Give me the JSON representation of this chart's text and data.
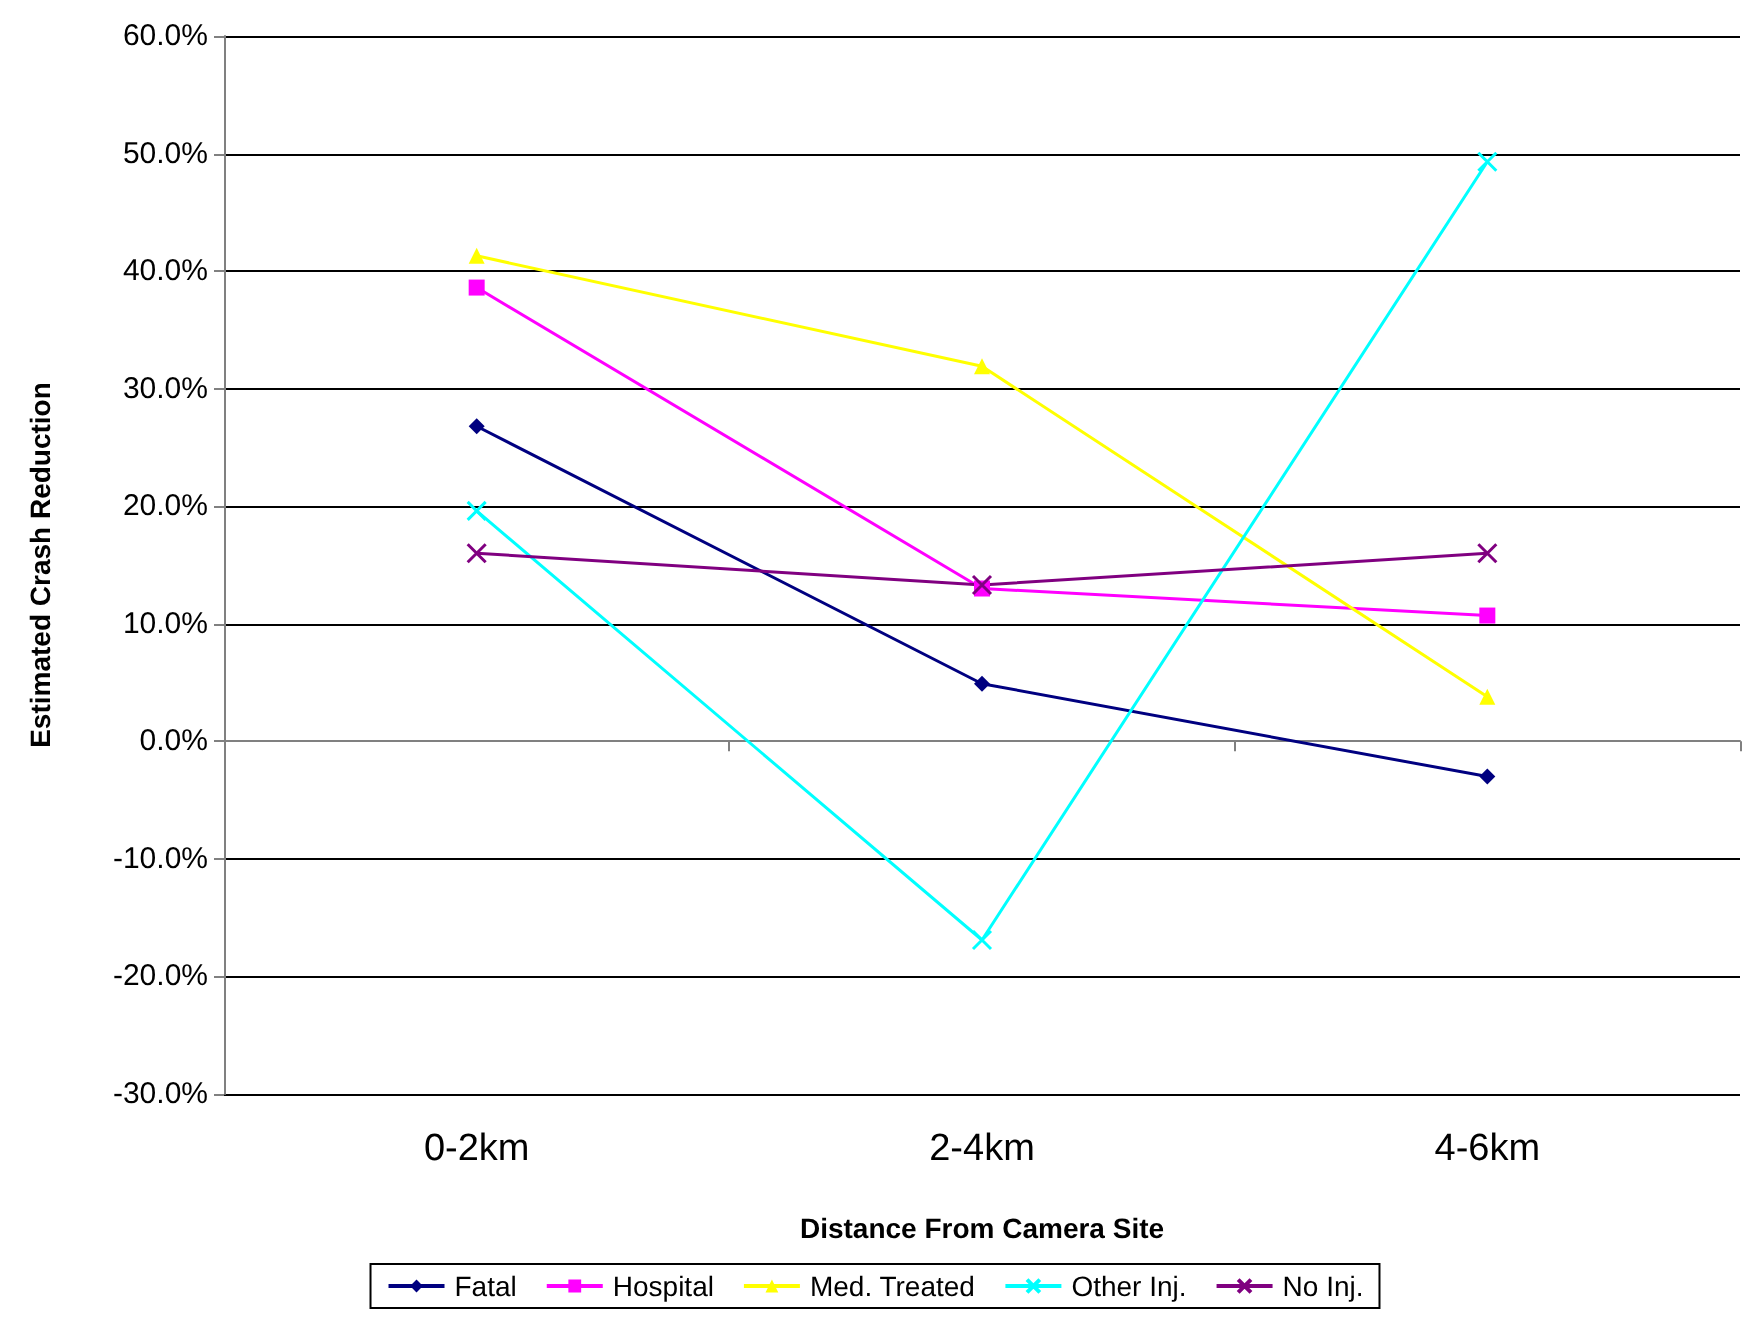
{
  "chart_data": {
    "type": "line",
    "xlabel": "Distance From Camera Site",
    "ylabel": "Estimated Crash Reduction",
    "categories": [
      "0-2km",
      "2-4km",
      "4-6km"
    ],
    "series": [
      {
        "name": "Fatal",
        "color": "#000080",
        "marker": "diamond",
        "values": [
          26.8,
          4.9,
          -3.0
        ]
      },
      {
        "name": "Hospital",
        "color": "#ff00ff",
        "marker": "square",
        "values": [
          38.6,
          13.0,
          10.7
        ]
      },
      {
        "name": "Med. Treated",
        "color": "#ffff00",
        "marker": "triangle",
        "values": [
          41.3,
          31.9,
          3.8
        ]
      },
      {
        "name": "Other Inj.",
        "color": "#00ffff",
        "marker": "cross",
        "values": [
          19.6,
          -16.9,
          49.3
        ]
      },
      {
        "name": "No Inj.",
        "color": "#800080",
        "marker": "cross",
        "values": [
          16.0,
          13.3,
          16.0
        ]
      }
    ],
    "ylim": [
      -30,
      60
    ],
    "yticks": [
      {
        "value": -30,
        "label": "-30.0%"
      },
      {
        "value": -20,
        "label": "-20.0%"
      },
      {
        "value": -10,
        "label": "-10.0%"
      },
      {
        "value": 0,
        "label": "0.0%"
      },
      {
        "value": 10,
        "label": "10.0%"
      },
      {
        "value": 20,
        "label": "20.0%"
      },
      {
        "value": 30,
        "label": "30.0%"
      },
      {
        "value": 40,
        "label": "40.0%"
      },
      {
        "value": 50,
        "label": "50.0%"
      },
      {
        "value": 60,
        "label": "60.0%"
      }
    ],
    "grid": "y",
    "legend": "bottom",
    "line_style": "solid"
  }
}
